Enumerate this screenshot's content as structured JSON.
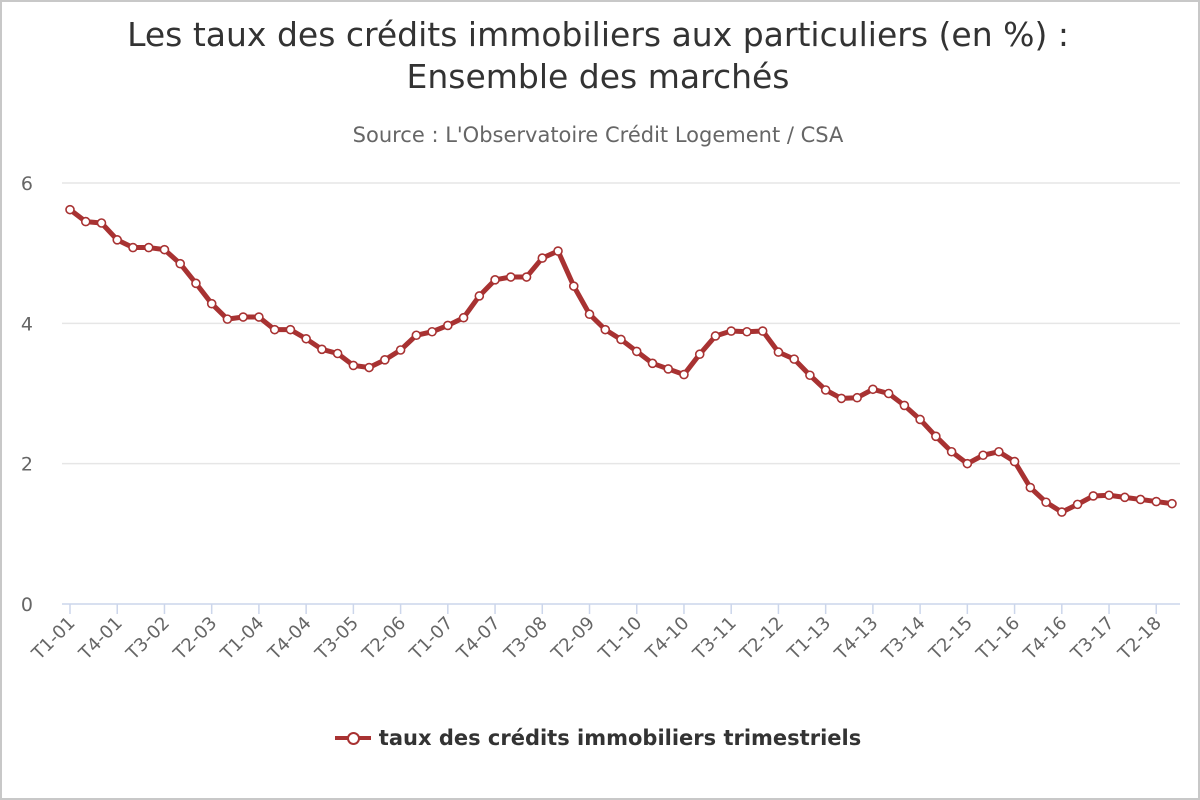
{
  "chart_data": {
    "type": "line",
    "title": "Les taux des crédits immobiliers aux particuliers (en %) :",
    "title_line2": "Ensemble des marchés",
    "subtitle": "Source : L'Observatoire Crédit Logement / CSA",
    "xlabel": "",
    "ylabel": "",
    "ylim": [
      0,
      6
    ],
    "yticks": [
      0,
      2,
      4,
      6
    ],
    "grid": true,
    "legend_position": "bottom-center",
    "x": [
      "T1-01",
      "T2-01",
      "T3-01",
      "T4-01",
      "T1-02",
      "T2-02",
      "T3-02",
      "T4-02",
      "T1-03",
      "T2-03",
      "T3-03",
      "T4-03",
      "T1-04",
      "T2-04",
      "T3-04",
      "T4-04",
      "T1-05",
      "T2-05",
      "T3-05",
      "T4-05",
      "T1-06",
      "T2-06",
      "T3-06",
      "T4-06",
      "T1-07",
      "T2-07",
      "T3-07",
      "T4-07",
      "T1-08",
      "T2-08",
      "T3-08",
      "T4-08",
      "T1-09",
      "T2-09",
      "T3-09",
      "T4-09",
      "T1-10",
      "T2-10",
      "T3-10",
      "T4-10",
      "T1-11",
      "T2-11",
      "T3-11",
      "T4-11",
      "T1-12",
      "T2-12",
      "T3-12",
      "T4-12",
      "T1-13",
      "T2-13",
      "T3-13",
      "T4-13",
      "T1-14",
      "T2-14",
      "T3-14",
      "T4-14",
      "T1-15",
      "T2-15",
      "T3-15",
      "T4-15",
      "T1-16",
      "T2-16",
      "T3-16",
      "T4-16",
      "T1-17",
      "T2-17",
      "T3-17",
      "T4-17",
      "T1-18",
      "T2-18",
      "T3-18"
    ],
    "x_tick_labels": [
      "T1-01",
      "T4-01",
      "T3-02",
      "T2-03",
      "T1-04",
      "T4-04",
      "T3-05",
      "T2-06",
      "T1-07",
      "T4-07",
      "T3-08",
      "T2-09",
      "T1-10",
      "T4-10",
      "T3-11",
      "T2-12",
      "T1-13",
      "T4-13",
      "T3-14",
      "T2-15",
      "T1-16",
      "T4-16",
      "T3-17",
      "T2-18"
    ],
    "series": [
      {
        "name": "taux des crédits immobiliers trimestriels",
        "color": "#a83232",
        "values": [
          5.62,
          5.45,
          5.43,
          5.19,
          5.08,
          5.08,
          5.05,
          4.85,
          4.57,
          4.28,
          4.06,
          4.09,
          4.09,
          3.91,
          3.91,
          3.78,
          3.63,
          3.57,
          3.4,
          3.37,
          3.48,
          3.62,
          3.83,
          3.88,
          3.97,
          4.08,
          4.39,
          4.62,
          4.66,
          4.66,
          4.93,
          5.03,
          4.53,
          4.13,
          3.91,
          3.77,
          3.6,
          3.43,
          3.35,
          3.27,
          3.56,
          3.82,
          3.89,
          3.88,
          3.89,
          3.59,
          3.49,
          3.26,
          3.05,
          2.93,
          2.94,
          3.06,
          3.0,
          2.83,
          2.63,
          2.39,
          2.17,
          2.0,
          2.12,
          2.17,
          2.03,
          1.66,
          1.45,
          1.31,
          1.42,
          1.54,
          1.55,
          1.52,
          1.49,
          1.46,
          1.43
        ]
      }
    ]
  },
  "legend": {
    "label": "taux des crédits immobiliers trimestriels"
  }
}
